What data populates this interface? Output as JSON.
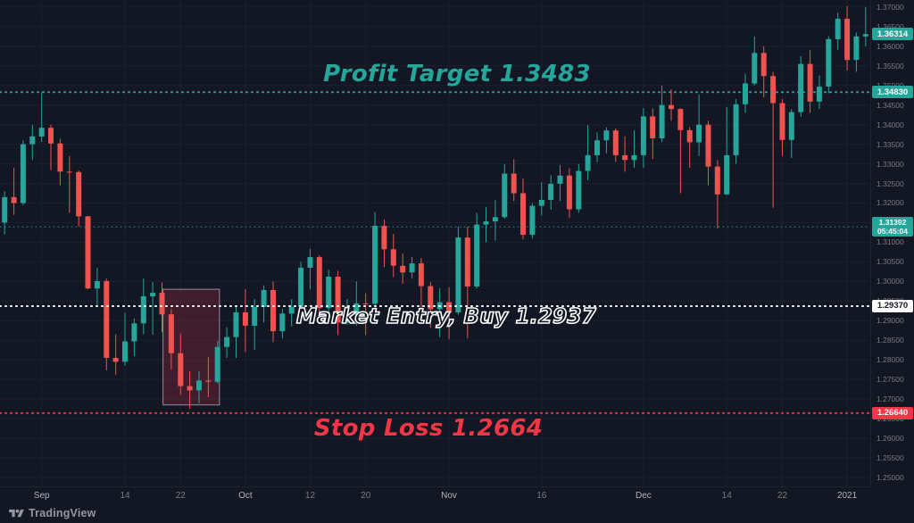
{
  "chart_data": {
    "type": "candlestick",
    "up_color": "#26a69a",
    "down_color": "#ef5350",
    "grid_color": "#1b2030",
    "scale": {
      "price_at_top": 1.3718,
      "price_at_bottom": 1.2477
    },
    "price_axis": {
      "ticks": [
        "1.37000",
        "1.36500",
        "1.36000",
        "1.35500",
        "1.35000",
        "1.34500",
        "1.34000",
        "1.33500",
        "1.33000",
        "1.32500",
        "1.32000",
        "1.31500",
        "1.31000",
        "1.30500",
        "1.30000",
        "1.29500",
        "1.29000",
        "1.28500",
        "1.28000",
        "1.27500",
        "1.27000",
        "1.26500",
        "1.26000",
        "1.25500",
        "1.25000"
      ]
    },
    "time_axis": {
      "ticks": [
        {
          "label": "Sep",
          "index": 4,
          "major": true
        },
        {
          "label": "14",
          "index": 13,
          "major": false
        },
        {
          "label": "22",
          "index": 19,
          "major": false
        },
        {
          "label": "Oct",
          "index": 26,
          "major": true
        },
        {
          "label": "12",
          "index": 33,
          "major": false
        },
        {
          "label": "20",
          "index": 39,
          "major": false
        },
        {
          "label": "Nov",
          "index": 48,
          "major": true
        },
        {
          "label": "16",
          "index": 58,
          "major": false
        },
        {
          "label": "Dec",
          "index": 69,
          "major": true
        },
        {
          "label": "14",
          "index": 78,
          "major": false
        },
        {
          "label": "22",
          "index": 84,
          "major": false
        },
        {
          "label": "2021",
          "index": 91,
          "major": true
        }
      ]
    },
    "highlight_box": {
      "start_index": 17.6,
      "end_index": 23.7,
      "price_top": 1.298,
      "price_bottom": 1.2685,
      "fill": "rgba(162,42,64,0.32)",
      "border": "rgba(235,235,245,0.55)"
    },
    "levels": [
      {
        "name": "profit-target",
        "price": 1.3483,
        "color": "#26a69a",
        "width": 2,
        "dash": "1 5",
        "opacity": 1
      },
      {
        "name": "alert",
        "price": 1.31392,
        "color": "#26a69a",
        "width": 1.4,
        "dash": "1 4",
        "opacity": 0.55
      },
      {
        "name": "market-entry",
        "price": 1.2937,
        "color": "#ffffff",
        "width": 2,
        "dash": "1 5",
        "opacity": 1
      },
      {
        "name": "stop-loss",
        "price": 1.2664,
        "color": "#f23645",
        "width": 2,
        "dash": "1 5",
        "opacity": 1
      }
    ],
    "candles": [
      [
        "Aug 26",
        1.315,
        1.323,
        1.312,
        1.3215
      ],
      [
        "Aug 27",
        1.3215,
        1.329,
        1.317,
        1.32
      ],
      [
        "Aug 28",
        1.32,
        1.336,
        1.3195,
        1.335
      ],
      [
        "Aug 31",
        1.335,
        1.34,
        1.331,
        1.337
      ],
      [
        "Sep 1",
        1.337,
        1.3482,
        1.3356,
        1.3392
      ],
      [
        "Sep 2",
        1.3392,
        1.34,
        1.3284,
        1.3352
      ],
      [
        "Sep 3",
        1.3352,
        1.3364,
        1.3245,
        1.328
      ],
      [
        "Sep 4",
        1.328,
        1.332,
        1.3175,
        1.3279
      ],
      [
        "Sep 7",
        1.3279,
        1.3283,
        1.314,
        1.3166
      ],
      [
        "Sep 8",
        1.3166,
        1.3167,
        1.298,
        1.2982
      ],
      [
        "Sep 9",
        1.2982,
        1.3035,
        1.294,
        1.3001
      ],
      [
        "Sep 10",
        1.3001,
        1.3007,
        1.2773,
        1.2805
      ],
      [
        "Sep 11",
        1.2805,
        1.2865,
        1.2762,
        1.2795
      ],
      [
        "Sep 14",
        1.2795,
        1.292,
        1.2785,
        1.2847
      ],
      [
        "Sep 15",
        1.2847,
        1.2905,
        1.281,
        1.2893
      ],
      [
        "Sep 16",
        1.2893,
        1.3007,
        1.2865,
        1.2962
      ],
      [
        "Sep 17",
        1.2962,
        1.2999,
        1.2864,
        1.2971
      ],
      [
        "Sep 18",
        1.2971,
        1.2997,
        1.287,
        1.2916
      ],
      [
        "Sep 21",
        1.2916,
        1.293,
        1.2775,
        1.2817
      ],
      [
        "Sep 22",
        1.2817,
        1.2867,
        1.2711,
        1.2733
      ],
      [
        "Sep 23",
        1.2733,
        1.2771,
        1.2675,
        1.2722
      ],
      [
        "Sep 24",
        1.2722,
        1.277,
        1.2688,
        1.2747
      ],
      [
        "Sep 25",
        1.2747,
        1.2807,
        1.2705,
        1.2744
      ],
      [
        "Sep 28",
        1.2744,
        1.2848,
        1.274,
        1.2833
      ],
      [
        "Sep 29",
        1.2833,
        1.2883,
        1.2805,
        1.2858
      ],
      [
        "Sep 30",
        1.2858,
        1.2938,
        1.2805,
        1.2921
      ],
      [
        "Oct 1",
        1.2921,
        1.298,
        1.282,
        1.2887
      ],
      [
        "Oct 2",
        1.2887,
        1.2955,
        1.2825,
        1.2935
      ],
      [
        "Oct 5",
        1.2935,
        1.299,
        1.2895,
        1.2978
      ],
      [
        "Oct 6",
        1.2978,
        1.3,
        1.2845,
        1.2873
      ],
      [
        "Oct 7",
        1.2873,
        1.293,
        1.2855,
        1.2918
      ],
      [
        "Oct 8",
        1.2918,
        1.2955,
        1.2885,
        1.2935
      ],
      [
        "Oct 9",
        1.2935,
        1.305,
        1.2925,
        1.3035
      ],
      [
        "Oct 12",
        1.3035,
        1.3083,
        1.298,
        1.3062
      ],
      [
        "Oct 13",
        1.3062,
        1.3067,
        1.2922,
        1.2932
      ],
      [
        "Oct 14",
        1.2932,
        1.303,
        1.2913,
        1.3012
      ],
      [
        "Oct 15",
        1.3012,
        1.3027,
        1.2863,
        1.2895
      ],
      [
        "Oct 16",
        1.2895,
        1.2955,
        1.289,
        1.2915
      ],
      [
        "Oct 19",
        1.2915,
        1.3,
        1.2887,
        1.2944
      ],
      [
        "Oct 20",
        1.2944,
        1.297,
        1.2863,
        1.2943
      ],
      [
        "Oct 21",
        1.2943,
        1.3177,
        1.292,
        1.3142
      ],
      [
        "Oct 22",
        1.3142,
        1.3158,
        1.3037,
        1.3082
      ],
      [
        "Oct 23",
        1.3082,
        1.3121,
        1.3011,
        1.304
      ],
      [
        "Oct 26",
        1.304,
        1.3071,
        1.2994,
        1.3023
      ],
      [
        "Oct 27",
        1.3023,
        1.3063,
        1.3007,
        1.3046
      ],
      [
        "Oct 28",
        1.3046,
        1.306,
        1.2925,
        1.2988
      ],
      [
        "Oct 29",
        1.2988,
        1.2998,
        1.2882,
        1.2929
      ],
      [
        "Oct 30",
        1.2929,
        1.2983,
        1.2858,
        1.2947
      ],
      [
        "Nov 2",
        1.2947,
        1.2985,
        1.2853,
        1.2921
      ],
      [
        "Nov 3",
        1.2921,
        1.3139,
        1.2915,
        1.3112
      ],
      [
        "Nov 4",
        1.3112,
        1.314,
        1.2855,
        1.2987
      ],
      [
        "Nov 5",
        1.2987,
        1.3175,
        1.2982,
        1.3145
      ],
      [
        "Nov 6",
        1.3145,
        1.319,
        1.31,
        1.3153
      ],
      [
        "Nov 9",
        1.3153,
        1.3207,
        1.3104,
        1.3164
      ],
      [
        "Nov 10",
        1.3164,
        1.33,
        1.316,
        1.3275
      ],
      [
        "Nov 11",
        1.3275,
        1.3312,
        1.3205,
        1.3225
      ],
      [
        "Nov 12",
        1.3225,
        1.3263,
        1.3107,
        1.3119
      ],
      [
        "Nov 13",
        1.3119,
        1.32,
        1.311,
        1.3193
      ],
      [
        "Nov 16",
        1.3193,
        1.3253,
        1.3168,
        1.3208
      ],
      [
        "Nov 17",
        1.3208,
        1.3271,
        1.3183,
        1.3249
      ],
      [
        "Nov 18",
        1.3249,
        1.3297,
        1.3205,
        1.327
      ],
      [
        "Nov 19",
        1.327,
        1.3289,
        1.3162,
        1.3184
      ],
      [
        "Nov 20",
        1.3184,
        1.33,
        1.3175,
        1.3282
      ],
      [
        "Nov 23",
        1.3282,
        1.3399,
        1.3258,
        1.3322
      ],
      [
        "Nov 24",
        1.3322,
        1.338,
        1.3304,
        1.336
      ],
      [
        "Nov 25",
        1.336,
        1.3393,
        1.3327,
        1.3385
      ],
      [
        "Nov 26",
        1.3385,
        1.339,
        1.3305,
        1.3322
      ],
      [
        "Nov 27",
        1.3322,
        1.337,
        1.328,
        1.331
      ],
      [
        "Nov 30",
        1.331,
        1.3385,
        1.329,
        1.3322
      ],
      [
        "Dec 1",
        1.3322,
        1.3442,
        1.329,
        1.3421
      ],
      [
        "Dec 2",
        1.3421,
        1.3441,
        1.3312,
        1.3365
      ],
      [
        "Dec 3",
        1.3365,
        1.35,
        1.3355,
        1.345
      ],
      [
        "Dec 4",
        1.345,
        1.349,
        1.341,
        1.344
      ],
      [
        "Dec 7",
        1.344,
        1.3442,
        1.3225,
        1.3386
      ],
      [
        "Dec 8",
        1.3386,
        1.3394,
        1.329,
        1.3355
      ],
      [
        "Dec 9",
        1.3355,
        1.3477,
        1.332,
        1.34
      ],
      [
        "Dec 10",
        1.34,
        1.341,
        1.3245,
        1.3293
      ],
      [
        "Dec 11",
        1.3293,
        1.331,
        1.3135,
        1.3222
      ],
      [
        "Dec 14",
        1.3222,
        1.3445,
        1.322,
        1.3322
      ],
      [
        "Dec 15",
        1.3322,
        1.3465,
        1.33,
        1.3452
      ],
      [
        "Dec 16",
        1.3452,
        1.353,
        1.343,
        1.3505
      ],
      [
        "Dec 17",
        1.3505,
        1.3625,
        1.35,
        1.3583
      ],
      [
        "Dec 18",
        1.3583,
        1.36,
        1.347,
        1.3524
      ],
      [
        "Dec 21",
        1.3524,
        1.3535,
        1.3188,
        1.3455
      ],
      [
        "Dec 22",
        1.3455,
        1.3465,
        1.332,
        1.3361
      ],
      [
        "Dec 23",
        1.3361,
        1.344,
        1.3315,
        1.3432
      ],
      [
        "Dec 24",
        1.3432,
        1.3575,
        1.342,
        1.3555
      ],
      [
        "Dec 28",
        1.3555,
        1.359,
        1.343,
        1.3459
      ],
      [
        "Dec 29",
        1.3459,
        1.3525,
        1.344,
        1.3497
      ],
      [
        "Dec 30",
        1.3497,
        1.3625,
        1.348,
        1.3618
      ],
      [
        "Dec 31",
        1.3618,
        1.3686,
        1.359,
        1.367
      ],
      [
        "Jan 4",
        1.367,
        1.3703,
        1.3538,
        1.3565
      ],
      [
        "Jan 5",
        1.3565,
        1.3635,
        1.3535,
        1.3625
      ],
      [
        "Jan 6",
        1.3625,
        1.37,
        1.36,
        1.3631
      ]
    ]
  },
  "annotations": {
    "profit_target": {
      "label": "Profit Target 1.3483",
      "price": 1.3483,
      "color": "#26a69a"
    },
    "market_entry": {
      "label": "Market Entry, Buy 1.2937",
      "price": 1.2937,
      "color": "#ffffff"
    },
    "stop_loss": {
      "label": "Stop Loss 1.2664",
      "price": 1.2664,
      "color": "#f23645"
    }
  },
  "badges": {
    "last": {
      "text": "1.36314",
      "price": 1.36314
    },
    "profit": {
      "text": "1.34830",
      "price": 1.3483
    },
    "alert": {
      "text": "1.31392",
      "countdown": "05:45:04",
      "price": 1.31392
    },
    "entry": {
      "text": "1.29370",
      "price": 1.2937
    },
    "stop": {
      "text": "1.26640",
      "price": 1.2664
    }
  },
  "footer": {
    "brand": "TradingView"
  }
}
